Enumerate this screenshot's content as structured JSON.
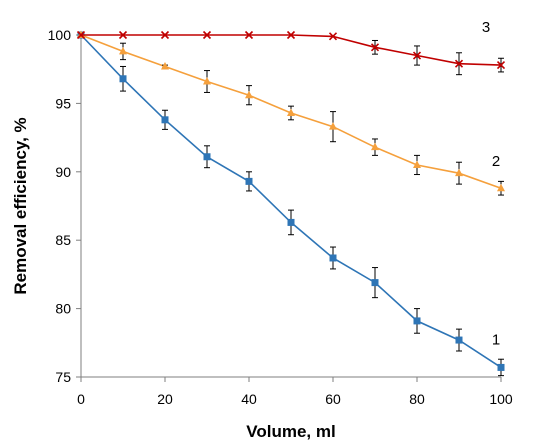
{
  "chart_data": {
    "type": "line",
    "title": "",
    "xlabel": "Volume, ml",
    "ylabel": "Removal efficiency, %",
    "xlim": [
      0,
      100
    ],
    "ylim": [
      75,
      100
    ],
    "x_ticks": [
      "0",
      "20",
      "40",
      "60",
      "80",
      "100"
    ],
    "y_ticks": [
      "75",
      "80",
      "85",
      "90",
      "95",
      "100"
    ],
    "grid": false,
    "legend": "none",
    "x": [
      0,
      10,
      20,
      30,
      40,
      50,
      60,
      70,
      80,
      90,
      100
    ],
    "series": [
      {
        "name": "1",
        "marker": "square",
        "color": "#2E75B6",
        "values": [
          100,
          96.8,
          93.8,
          91.1,
          89.3,
          86.3,
          83.7,
          81.9,
          79.1,
          77.7,
          75.7
        ],
        "errors": [
          0,
          0.9,
          0.7,
          0.8,
          0.7,
          0.9,
          0.8,
          1.1,
          0.9,
          0.8,
          0.6
        ]
      },
      {
        "name": "2",
        "marker": "triangle",
        "color": "#F5A03C",
        "values": [
          100,
          98.8,
          97.7,
          96.6,
          95.6,
          94.3,
          93.3,
          91.8,
          90.5,
          89.9,
          88.8
        ],
        "errors": [
          0,
          0.6,
          0.1,
          0.8,
          0.7,
          0.5,
          1.1,
          0.6,
          0.7,
          0.8,
          0.5
        ]
      },
      {
        "name": "3",
        "marker": "x",
        "color": "#C00000",
        "values": [
          100,
          100,
          100,
          100,
          100,
          100,
          99.9,
          99.1,
          98.5,
          97.9,
          97.8
        ],
        "errors": [
          0,
          0,
          0,
          0,
          0,
          0,
          0,
          0.5,
          0.7,
          0.8,
          0.5
        ]
      }
    ]
  }
}
